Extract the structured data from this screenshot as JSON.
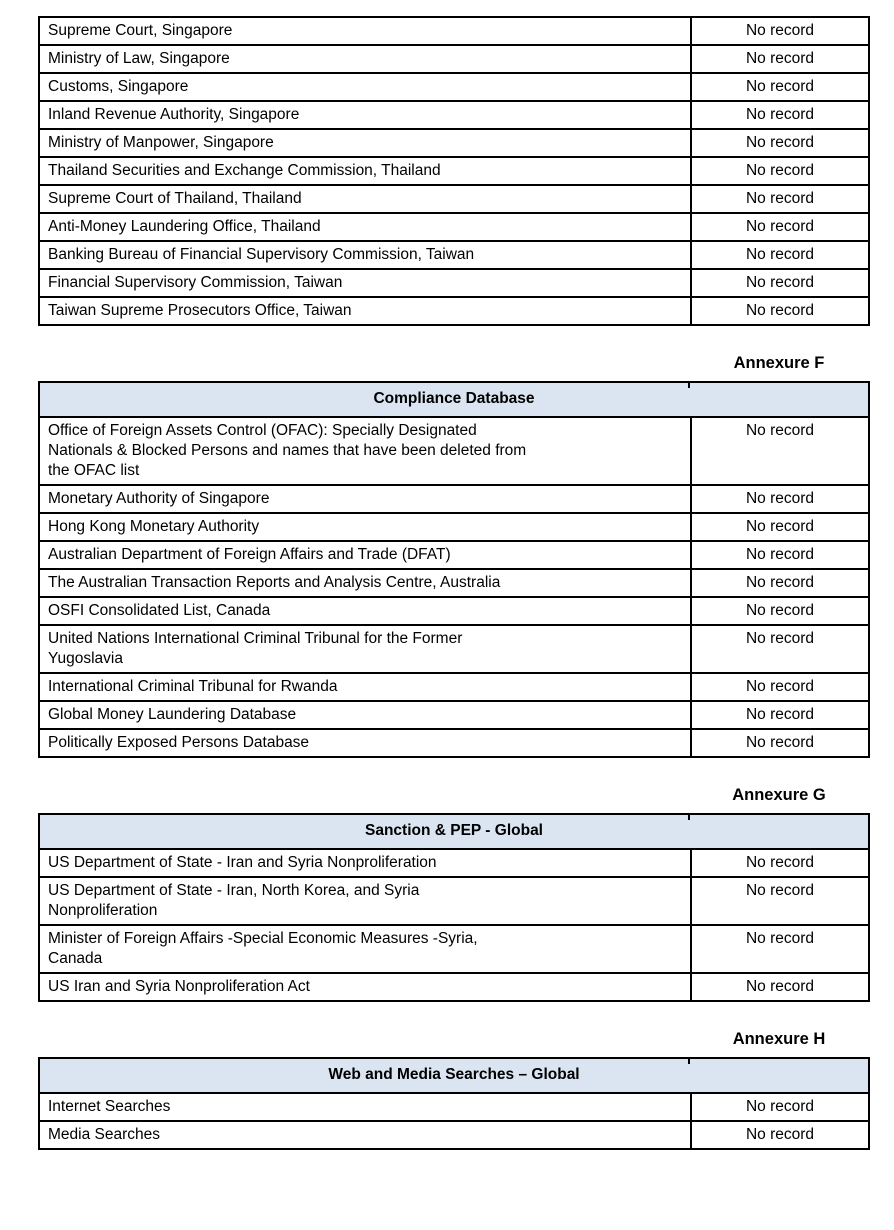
{
  "document": {
    "colors": {
      "page_bg": "#ffffff",
      "table_header_bg": "#dbe4f1",
      "border": "#000000",
      "text": "#000000"
    },
    "sections": [
      {
        "name": "regulatory-sources-continued",
        "annexure_label": "",
        "table_title": "",
        "rows": [
          {
            "source": "Supreme Court, Singapore",
            "result": "No record"
          },
          {
            "source": "Ministry of Law, Singapore",
            "result": "No record"
          },
          {
            "source": "Customs, Singapore",
            "result": "No record"
          },
          {
            "source": "Inland Revenue Authority, Singapore",
            "result": "No record"
          },
          {
            "source": "Ministry of Manpower, Singapore",
            "result": "No record"
          },
          {
            "source": "Thailand Securities and Exchange Commission, Thailand",
            "result": "No record"
          },
          {
            "source": "Supreme Court of Thailand, Thailand",
            "result": "No record"
          },
          {
            "source": "Anti-Money Laundering Office, Thailand",
            "result": "No record"
          },
          {
            "source": "Banking Bureau of Financial Supervisory Commission, Taiwan",
            "result": "No record"
          },
          {
            "source": "Financial Supervisory Commission, Taiwan",
            "result": "No record"
          },
          {
            "source": "Taiwan Supreme Prosecutors Office, Taiwan",
            "result": "No record"
          }
        ]
      },
      {
        "name": "compliance-database",
        "annexure_label": "Annexure F",
        "table_title": "Compliance Database",
        "rows": [
          {
            "source": "Office of Foreign Assets Control (OFAC): Specially Designated\nNationals & Blocked Persons and names that have been deleted from\nthe OFAC list",
            "result": "No record"
          },
          {
            "source": "Monetary Authority of Singapore",
            "result": "No record"
          },
          {
            "source": "Hong Kong Monetary Authority",
            "result": "No record"
          },
          {
            "source": "Australian Department of Foreign Affairs and Trade (DFAT)",
            "result": "No record"
          },
          {
            "source": "The Australian Transaction Reports and Analysis Centre, Australia",
            "result": "No record"
          },
          {
            "source": "OSFI Consolidated List, Canada",
            "result": "No record"
          },
          {
            "source": "United Nations International Criminal Tribunal for the Former\nYugoslavia",
            "result": "No record"
          },
          {
            "source": "International Criminal Tribunal for Rwanda",
            "result": "No record"
          },
          {
            "source": "Global Money Laundering Database",
            "result": "No record"
          },
          {
            "source": "Politically Exposed Persons Database",
            "result": "No record"
          }
        ]
      },
      {
        "name": "sanction-pep-global",
        "annexure_label": "Annexure G",
        "table_title": "Sanction & PEP - Global",
        "rows": [
          {
            "source": "US Department of State - Iran and Syria Nonproliferation",
            "result": "No record"
          },
          {
            "source": "US Department of State - Iran, North Korea, and Syria\nNonproliferation",
            "result": "No record"
          },
          {
            "source": "Minister of Foreign Affairs -Special Economic Measures -Syria,\nCanada",
            "result": "No record"
          },
          {
            "source": "US Iran and Syria Nonproliferation Act",
            "result": "No record"
          }
        ]
      },
      {
        "name": "web-and-media-searches-global",
        "annexure_label": "Annexure H",
        "table_title": "Web and Media Searches – Global",
        "rows": [
          {
            "source": "Internet Searches",
            "result": "No record"
          },
          {
            "source": "Media Searches",
            "result": "No record"
          }
        ]
      }
    ]
  }
}
